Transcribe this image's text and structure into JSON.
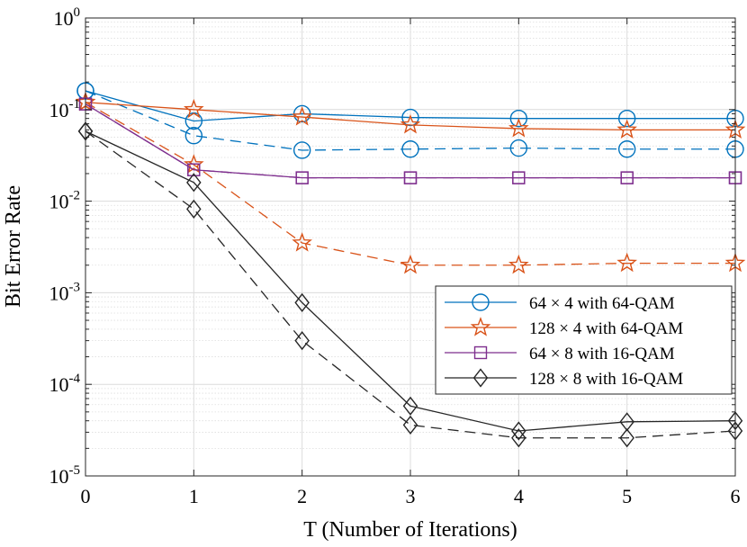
{
  "chart_data": {
    "type": "line",
    "title": "",
    "xlabel": "T (Number of Iterations)",
    "ylabel": "Bit Error Rate",
    "x": [
      0,
      1,
      2,
      3,
      4,
      5,
      6
    ],
    "xlim": [
      0,
      6
    ],
    "ylim": [
      1e-05,
      1
    ],
    "yscale": "log",
    "grid": true,
    "x_ticks": [
      "0",
      "1",
      "2",
      "3",
      "4",
      "5",
      "6"
    ],
    "y_ticks": [
      {
        "base": "10",
        "exp": "0"
      },
      {
        "base": "10",
        "exp": "-1"
      },
      {
        "base": "10",
        "exp": "-2"
      },
      {
        "base": "10",
        "exp": "-3"
      },
      {
        "base": "10",
        "exp": "-4"
      },
      {
        "base": "10",
        "exp": "-5"
      }
    ],
    "legend_position": "right-center",
    "series": [
      {
        "name": "64 × 4 with 64-QAM",
        "marker": "circle",
        "color": "#0072BD",
        "style": "solid",
        "values": [
          0.16,
          0.075,
          0.09,
          0.082,
          0.08,
          0.08,
          0.08
        ]
      },
      {
        "name": "64 × 4 with 64-QAM (dashed)",
        "marker": "circle",
        "color": "#0072BD",
        "style": "dashed",
        "values": [
          0.16,
          0.052,
          0.036,
          0.037,
          0.038,
          0.037,
          0.037
        ]
      },
      {
        "name": "128 × 4 with 64-QAM",
        "marker": "star",
        "color": "#D95319",
        "style": "solid",
        "values": [
          0.12,
          0.1,
          0.083,
          0.068,
          0.062,
          0.06,
          0.06
        ]
      },
      {
        "name": "128 × 4 with 64-QAM (dashed)",
        "marker": "star",
        "color": "#D95319",
        "style": "dashed",
        "values": [
          0.12,
          0.025,
          0.0035,
          0.002,
          0.002,
          0.0021,
          0.0021
        ]
      },
      {
        "name": "64 × 8 with 16-QAM",
        "marker": "square",
        "color": "#7E2F8E",
        "style": "solid",
        "values": [
          0.115,
          0.022,
          0.018,
          0.018,
          0.018,
          0.018,
          0.018
        ]
      },
      {
        "name": "64 × 8 with 16-QAM (dashed)",
        "marker": "square",
        "color": "#7E2F8E",
        "style": "dashed",
        "values": [
          0.115,
          0.022,
          0.018,
          0.018,
          0.018,
          0.018,
          0.018
        ]
      },
      {
        "name": "128 × 8 with 16-QAM",
        "marker": "diamond",
        "color": "#262626",
        "style": "solid",
        "values": [
          0.058,
          0.016,
          0.00078,
          5.8e-05,
          3.1e-05,
          3.9e-05,
          4e-05
        ]
      },
      {
        "name": "128 × 8 with 16-QAM (dashed)",
        "marker": "diamond",
        "color": "#262626",
        "style": "dashed",
        "values": [
          0.058,
          0.0082,
          0.0003,
          3.6e-05,
          2.6e-05,
          2.6e-05,
          3.1e-05
        ]
      }
    ],
    "legend": [
      {
        "label": "64 × 4 with 64-QAM",
        "marker": "circle",
        "color": "#0072BD"
      },
      {
        "label": "128 × 4 with 64-QAM",
        "marker": "star",
        "color": "#D95319"
      },
      {
        "label": "64 × 8 with 16-QAM",
        "marker": "square",
        "color": "#7E2F8E"
      },
      {
        "label": "128 × 8 with 16-QAM",
        "marker": "diamond",
        "color": "#262626"
      }
    ]
  }
}
